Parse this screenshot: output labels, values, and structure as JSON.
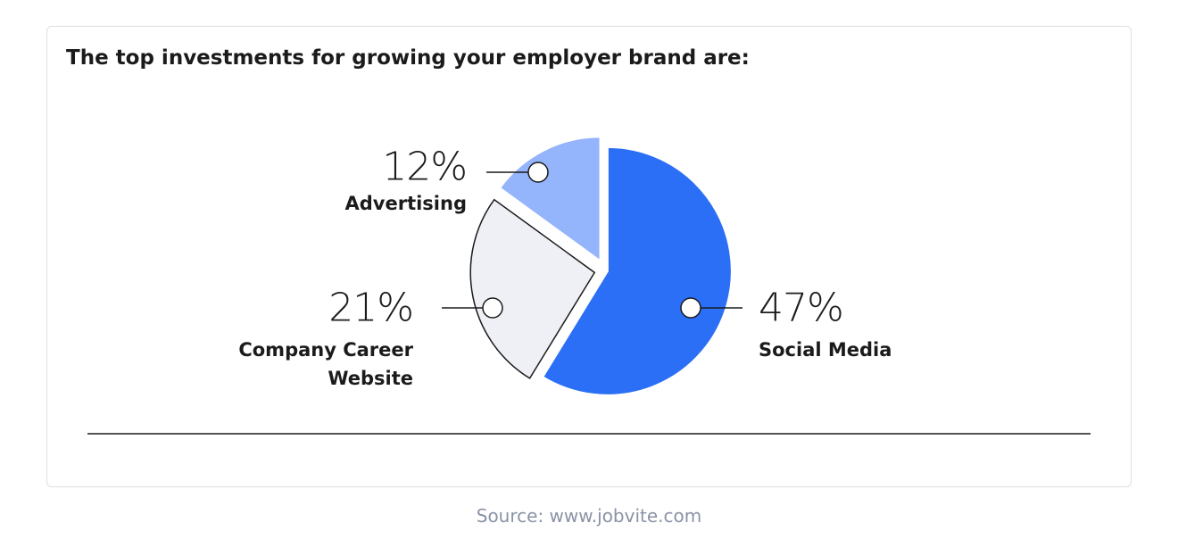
{
  "chart_data": {
    "type": "pie",
    "title": "The top investments for growing your employer brand are:",
    "categories": [
      "Social Media",
      "Company Career Website",
      "Advertising"
    ],
    "values": [
      47,
      21,
      12
    ],
    "value_labels": [
      "47%",
      "21%",
      "12%"
    ],
    "colors": [
      "#2a6ff5",
      "#eef0f5",
      "#94b4fb"
    ],
    "source": "Source: www.jobvite.com"
  }
}
